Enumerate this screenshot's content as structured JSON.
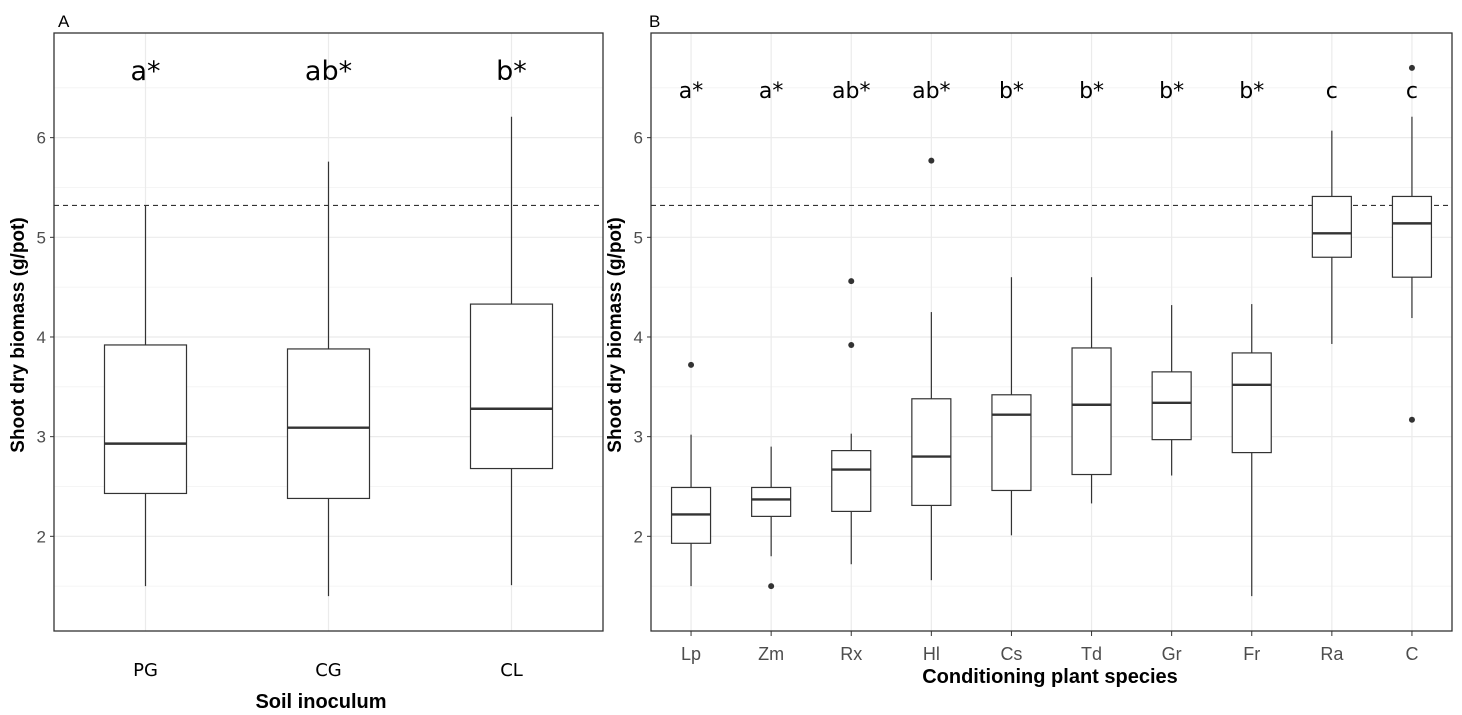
{
  "chart_data": [
    {
      "type": "box",
      "panel_label": "A",
      "title": "",
      "xlabel": "Soil inoculum",
      "ylabel": "Shoot dry biomass (g/pot)",
      "ylim": [
        1.05,
        7.05
      ],
      "y_ticks": [
        2,
        3,
        4,
        5,
        6
      ],
      "grid": true,
      "reference_line": 5.32,
      "categories": [
        "PG",
        "CG",
        "CL"
      ],
      "boxes": [
        {
          "category": "PG",
          "whisker_low": 1.5,
          "q1": 2.43,
          "median": 2.93,
          "q3": 3.92,
          "whisker_high": 5.32,
          "outliers": []
        },
        {
          "category": "CG",
          "whisker_low": 1.4,
          "q1": 2.38,
          "median": 3.09,
          "q3": 3.88,
          "whisker_high": 5.76,
          "outliers": []
        },
        {
          "category": "CL",
          "whisker_low": 1.51,
          "q1": 2.68,
          "median": 3.28,
          "q3": 4.33,
          "whisker_high": 6.21,
          "outliers": []
        }
      ],
      "significance_letters": [
        "a*",
        "ab*",
        "b*"
      ]
    },
    {
      "type": "box",
      "panel_label": "B",
      "title": "",
      "xlabel": "Conditioning plant species",
      "ylabel": "Shoot dry biomass (g/pot)",
      "ylim": [
        1.05,
        7.05
      ],
      "y_ticks": [
        2,
        3,
        4,
        5,
        6
      ],
      "grid": true,
      "reference_line": 5.32,
      "categories": [
        "Lp",
        "Zm",
        "Rx",
        "Hl",
        "Cs",
        "Td",
        "Gr",
        "Fr",
        "Ra",
        "C"
      ],
      "boxes": [
        {
          "category": "Lp",
          "whisker_low": 1.5,
          "q1": 1.93,
          "median": 2.22,
          "q3": 2.49,
          "whisker_high": 3.02,
          "outliers": [
            3.72
          ]
        },
        {
          "category": "Zm",
          "whisker_low": 1.8,
          "q1": 2.2,
          "median": 2.37,
          "q3": 2.49,
          "whisker_high": 2.9,
          "outliers": [
            1.5
          ]
        },
        {
          "category": "Rx",
          "whisker_low": 1.72,
          "q1": 2.25,
          "median": 2.67,
          "q3": 2.86,
          "whisker_high": 3.03,
          "outliers": [
            3.92,
            4.56
          ]
        },
        {
          "category": "Hl",
          "whisker_low": 1.56,
          "q1": 2.31,
          "median": 2.8,
          "q3": 3.38,
          "whisker_high": 4.25,
          "outliers": [
            5.77
          ]
        },
        {
          "category": "Cs",
          "whisker_low": 2.01,
          "q1": 2.46,
          "median": 3.22,
          "q3": 3.42,
          "whisker_high": 4.6,
          "outliers": []
        },
        {
          "category": "Td",
          "whisker_low": 2.33,
          "q1": 2.62,
          "median": 3.32,
          "q3": 3.89,
          "whisker_high": 4.6,
          "outliers": []
        },
        {
          "category": "Gr",
          "whisker_low": 2.61,
          "q1": 2.97,
          "median": 3.34,
          "q3": 3.65,
          "whisker_high": 4.32,
          "outliers": []
        },
        {
          "category": "Fr",
          "whisker_low": 1.4,
          "q1": 2.84,
          "median": 3.52,
          "q3": 3.84,
          "whisker_high": 4.33,
          "outliers": []
        },
        {
          "category": "Ra",
          "whisker_low": 3.93,
          "q1": 4.8,
          "median": 5.04,
          "q3": 5.41,
          "whisker_high": 6.07,
          "outliers": []
        },
        {
          "category": "C",
          "whisker_low": 4.19,
          "q1": 4.6,
          "median": 5.14,
          "q3": 5.41,
          "whisker_high": 6.21,
          "outliers": [
            6.7,
            3.17
          ]
        }
      ],
      "significance_letters": [
        "a*",
        "a*",
        "ab*",
        "ab*",
        "b*",
        "b*",
        "b*",
        "b*",
        "c",
        "c"
      ]
    }
  ]
}
